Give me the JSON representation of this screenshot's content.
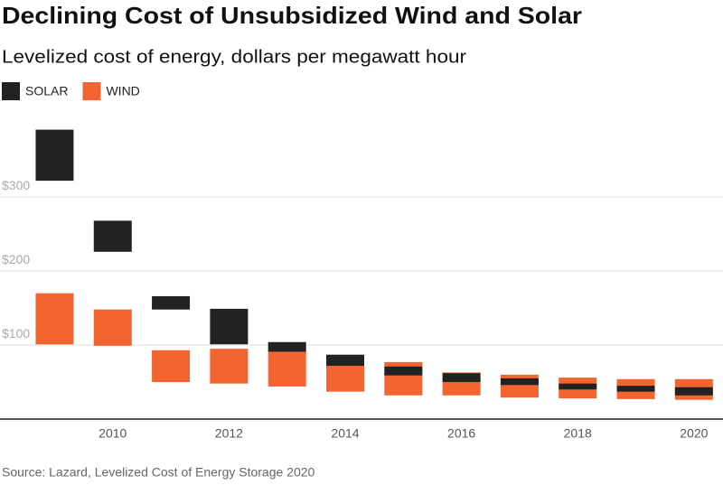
{
  "chart_data": {
    "type": "floating-bar",
    "title": "Declining Cost of Unsubsidized Wind and Solar",
    "subtitle": "Levelized cost of energy, dollars per megawatt hour",
    "source": "Source: Lazard, Levelized Cost of Energy Storage 2020",
    "x": [
      2009,
      2010,
      2011,
      2012,
      2013,
      2014,
      2015,
      2016,
      2017,
      2018,
      2019,
      2020
    ],
    "xlim": [
      2008.06,
      2020.5
    ],
    "xticks": [
      2010,
      2012,
      2014,
      2016,
      2018,
      2020
    ],
    "ylim": [
      0,
      410
    ],
    "yticks": [
      {
        "value": 100,
        "label": "$100"
      },
      {
        "value": 200,
        "label": "$200"
      },
      {
        "value": 300,
        "label": "$300"
      }
    ],
    "grid": true,
    "series": [
      {
        "name": "SOLAR",
        "color": "#222222",
        "low": [
          322,
          226,
          148,
          101,
          91,
          72,
          59,
          50,
          46,
          40,
          37,
          32
        ],
        "high": [
          391,
          268,
          166,
          149,
          104,
          87,
          71,
          62,
          55,
          48,
          45,
          43
        ]
      },
      {
        "name": "WIND",
        "color": "#f26430",
        "low": [
          101,
          99,
          50,
          48,
          44,
          37,
          32,
          32,
          29,
          28,
          27,
          26
        ],
        "high": [
          170,
          148,
          93,
          95,
          93,
          74,
          77,
          63,
          60,
          56,
          54,
          54
        ]
      }
    ]
  }
}
